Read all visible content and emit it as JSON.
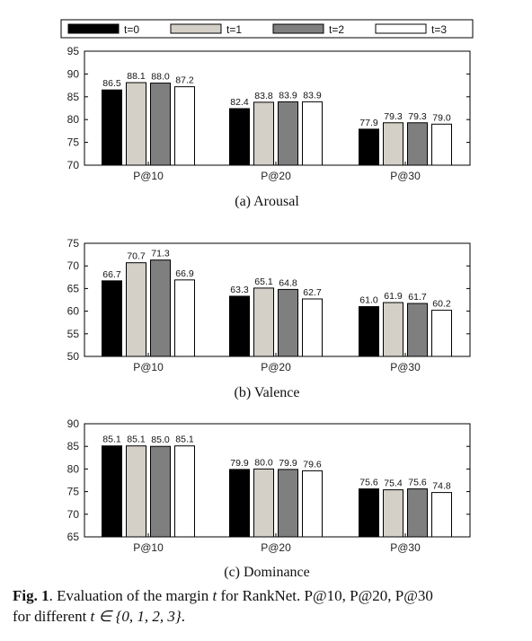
{
  "legend": {
    "items": [
      {
        "label": "t=0",
        "color": "#000000"
      },
      {
        "label": "t=1",
        "color": "#d4d0c8"
      },
      {
        "label": "t=2",
        "color": "#7f7f7f"
      },
      {
        "label": "t=3",
        "color": "#ffffff"
      }
    ]
  },
  "chart_data": [
    {
      "type": "bar",
      "caption": "(a)  Arousal",
      "categories": [
        "P@10",
        "P@20",
        "P@30"
      ],
      "ylim": [
        70,
        95
      ],
      "yticks": [
        70,
        75,
        80,
        85,
        90,
        95
      ],
      "series": [
        {
          "name": "t=0",
          "values": [
            86.5,
            82.4,
            77.9
          ],
          "labels": [
            "86.5",
            "82.4",
            "77.9"
          ]
        },
        {
          "name": "t=1",
          "values": [
            88.1,
            83.8,
            79.3
          ],
          "labels": [
            "88.1",
            "83.8",
            "79.3"
          ]
        },
        {
          "name": "t=2",
          "values": [
            88.0,
            83.9,
            79.3
          ],
          "labels": [
            "88.0",
            "83.9",
            "79.3"
          ]
        },
        {
          "name": "t=3",
          "values": [
            87.2,
            83.9,
            79.0
          ],
          "labels": [
            "87.2",
            "83.9",
            "79.0"
          ]
        }
      ]
    },
    {
      "type": "bar",
      "caption": "(b)  Valence",
      "categories": [
        "P@10",
        "P@20",
        "P@30"
      ],
      "ylim": [
        50,
        75
      ],
      "yticks": [
        50,
        55,
        60,
        65,
        70,
        75
      ],
      "series": [
        {
          "name": "t=0",
          "values": [
            66.7,
            63.3,
            61.0
          ],
          "labels": [
            "66.7",
            "63.3",
            "61.0"
          ]
        },
        {
          "name": "t=1",
          "values": [
            70.7,
            65.1,
            61.9
          ],
          "labels": [
            "70.7",
            "65.1",
            "61.9"
          ]
        },
        {
          "name": "t=2",
          "values": [
            71.3,
            64.8,
            61.7
          ],
          "labels": [
            "71.3",
            "64.8",
            "61.7"
          ]
        },
        {
          "name": "t=3",
          "values": [
            66.9,
            62.7,
            60.2
          ],
          "labels": [
            "66.9",
            "62.7",
            "60.2"
          ]
        }
      ]
    },
    {
      "type": "bar",
      "caption": "(c)  Dominance",
      "categories": [
        "P@10",
        "P@20",
        "P@30"
      ],
      "ylim": [
        65,
        90
      ],
      "yticks": [
        65,
        70,
        75,
        80,
        85,
        90
      ],
      "series": [
        {
          "name": "t=0",
          "values": [
            85.1,
            79.9,
            75.6
          ],
          "labels": [
            "85.1",
            "79.9",
            "75.6"
          ]
        },
        {
          "name": "t=1",
          "values": [
            85.1,
            80.0,
            75.4
          ],
          "labels": [
            "85.1",
            "80.0",
            "75.4"
          ]
        },
        {
          "name": "t=2",
          "values": [
            85.0,
            79.9,
            75.6
          ],
          "labels": [
            "85.0",
            "79.9",
            "75.6"
          ]
        },
        {
          "name": "t=3",
          "values": [
            85.1,
            79.6,
            74.8
          ],
          "labels": [
            "85.1",
            "79.6",
            "74.8"
          ]
        }
      ]
    }
  ],
  "figure_caption": {
    "prefix": "Fig. 1",
    "line1_rest": ". Evaluation of the margin ",
    "var_t": "t",
    "line1_tail": " for RankNet. P@10, P@20, P@30",
    "line2_start": "for different ",
    "line2_math": "t ∈ {0, 1, 2, 3}",
    "line2_end": "."
  }
}
